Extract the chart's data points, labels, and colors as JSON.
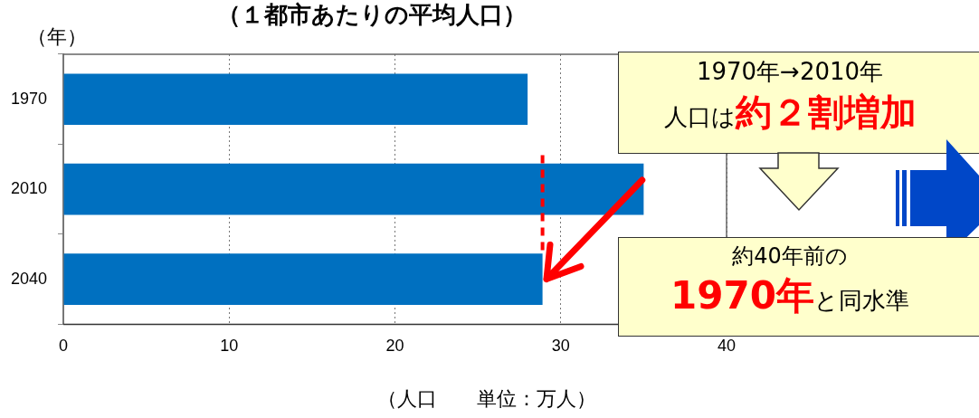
{
  "chart_data": {
    "type": "bar",
    "orientation": "horizontal",
    "title": "（１都市あたりの平均人口）",
    "ylabel": "（年）",
    "xlabel": "（人口　　単位：万人）",
    "categories": [
      "1970",
      "2010",
      "2040"
    ],
    "series": [
      {
        "color": "#0070c0",
        "values": [
          28.0,
          35.0,
          28.9
        ]
      }
    ],
    "xlim": [
      0,
      40
    ],
    "xticks": [
      0,
      10,
      20,
      30,
      40
    ],
    "grid": "x",
    "ref_lines": [
      {
        "axis": "x",
        "value": 28.9,
        "color": "#ff0000",
        "line_style": "dashed"
      }
    ],
    "annotations": [
      "1970年→2010年",
      "人口は",
      "約２割増加",
      "約40年前の",
      "1970年",
      "と同水準"
    ]
  }
}
